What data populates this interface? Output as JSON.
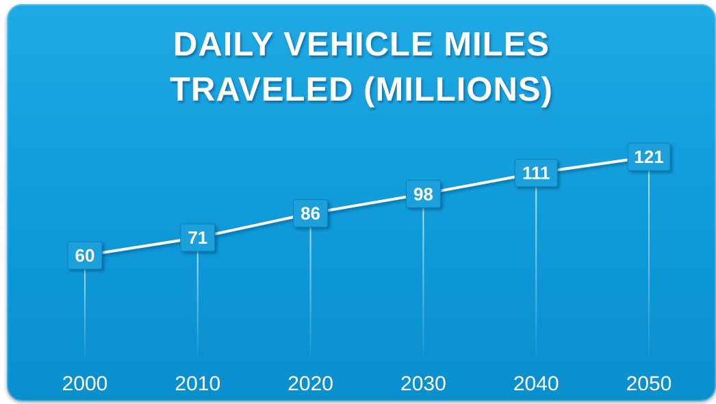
{
  "chart_data": {
    "type": "line",
    "title_lines": [
      "DAILY VEHICLE MILES",
      "TRAVELED (MILLIONS)"
    ],
    "categories": [
      "2000",
      "2010",
      "2020",
      "2030",
      "2040",
      "2050"
    ],
    "series": [
      {
        "values": [
          60,
          71,
          86,
          98,
          111,
          121
        ]
      }
    ],
    "data_labels": [
      "60",
      "71",
      "86",
      "98",
      "111",
      "121"
    ],
    "xlabel": "",
    "ylabel": "",
    "grid": false,
    "legend": "none",
    "colors": {
      "background": "#12a0df",
      "line": "#ffffff",
      "text": "#ffffff"
    }
  }
}
